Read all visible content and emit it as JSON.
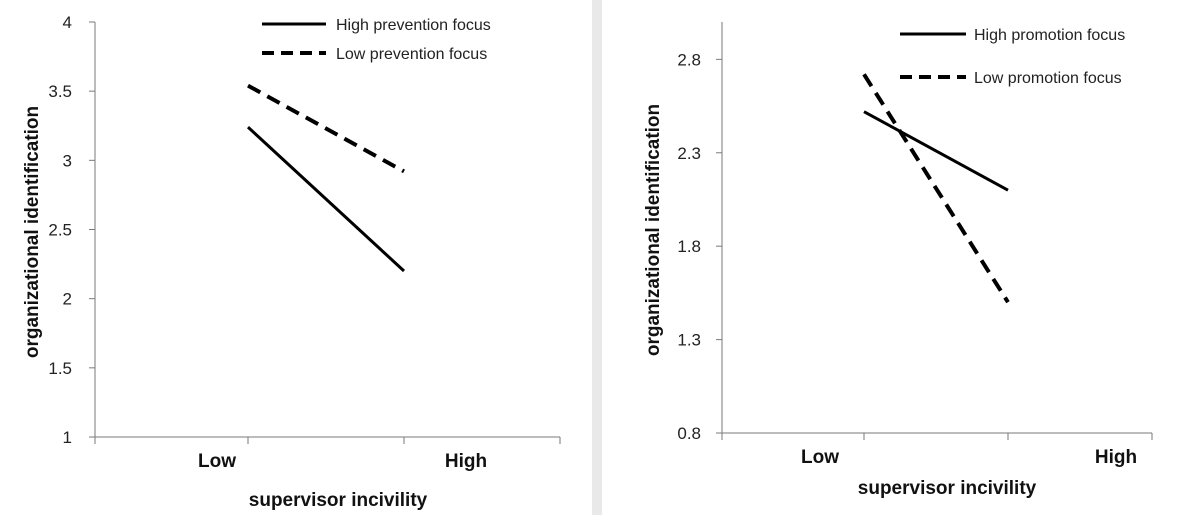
{
  "chart_data": [
    {
      "type": "line",
      "categories": [
        "Low",
        "High"
      ],
      "series": [
        {
          "name": "High prevention focus",
          "values": [
            3.24,
            2.2
          ],
          "style": "solid"
        },
        {
          "name": "Low prevention focus",
          "values": [
            3.54,
            2.92
          ],
          "style": "dashed"
        }
      ],
      "xlabel": "supervisor incivility",
      "ylabel": "organizational identification",
      "ylim": [
        1,
        4
      ],
      "yticks": [
        "1",
        "1.5",
        "2",
        "2.5",
        "3",
        "3.5",
        "4"
      ],
      "grid": false,
      "legend_position": "top-right"
    },
    {
      "type": "line",
      "categories": [
        "Low",
        "High"
      ],
      "series": [
        {
          "name": "High promotion focus",
          "values": [
            2.52,
            2.1
          ],
          "style": "solid"
        },
        {
          "name": "Low promotion focus",
          "values": [
            2.72,
            1.5
          ],
          "style": "dashed"
        }
      ],
      "xlabel": "supervisor incivility",
      "ylabel": "organizational identification",
      "ylim": [
        0.8,
        3.0
      ],
      "yticks": [
        "0.8",
        "1.3",
        "1.8",
        "2.3",
        "2.8"
      ],
      "grid": false,
      "legend_position": "top-right"
    }
  ]
}
